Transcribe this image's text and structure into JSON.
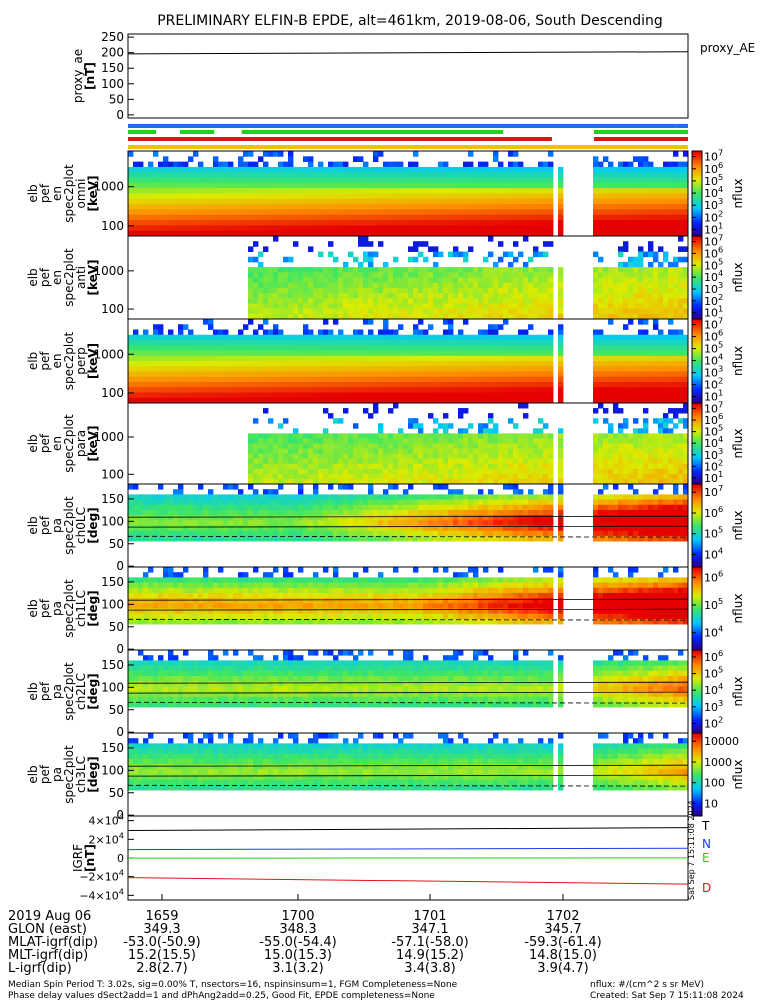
{
  "title": "PRELIMINARY ELFIN-B EPDE, alt=461km, 2019-08-06, South Descending",
  "colors": {
    "blue": "#1a6ee6",
    "green": "#1ed21e",
    "red": "#e01414",
    "yellow": "#f5c000"
  },
  "chart_data": [
    {
      "type": "line",
      "name": "proxy_ae",
      "ylabel_lines": [
        "proxy_ae",
        "[nT]"
      ],
      "yticks": [
        "250",
        "200",
        "150",
        "100",
        "50",
        "0"
      ],
      "ylim": [
        -10,
        260
      ],
      "series": [
        {
          "name": "proxy_AE",
          "x": [
            0,
            1
          ],
          "values": [
            196,
            203
          ]
        }
      ]
    },
    {
      "type": "bar",
      "name": "indicator-bars",
      "bars": [
        {
          "color": "blue",
          "segments": [
            [
              0,
              0.98
            ],
            [
              0.98,
              1.0
            ]
          ]
        },
        {
          "color": "green",
          "segments": [
            [
              0.0,
              0.05
            ],
            [
              0.093,
              0.154
            ],
            [
              0.203,
              0.67
            ],
            [
              0.832,
              1.0
            ]
          ]
        },
        {
          "color": "red",
          "segments": [
            [
              0.0,
              0.757
            ],
            [
              0.832,
              1.0
            ]
          ]
        },
        {
          "color": "yellow",
          "segments": [
            [
              0,
              1
            ]
          ]
        }
      ]
    },
    {
      "type": "heatmap",
      "name": "omni",
      "ylabel_lines": [
        "elb",
        "pef",
        "en",
        "spec2plot",
        "omni",
        "[keV]"
      ],
      "yticks": [
        "1000",
        "100"
      ],
      "cbar_ticks": [
        "10^7",
        "10^6",
        "10^5",
        "10^4",
        "10^3",
        "10^2",
        "10^1"
      ],
      "cbar_label": "nflux"
    },
    {
      "type": "heatmap",
      "name": "anti",
      "ylabel_lines": [
        "elb",
        "pef",
        "en",
        "spec2plot",
        "anti",
        "[keV]"
      ],
      "yticks": [
        "1000",
        "100"
      ],
      "cbar_ticks": [
        "10^7",
        "10^6",
        "10^5",
        "10^4",
        "10^3",
        "10^2",
        "10^1"
      ],
      "cbar_label": "nflux"
    },
    {
      "type": "heatmap",
      "name": "perp",
      "ylabel_lines": [
        "elb",
        "pef",
        "en",
        "spec2plot",
        "perp",
        "[keV]"
      ],
      "yticks": [
        "1000",
        "100"
      ],
      "cbar_ticks": [
        "10^7",
        "10^6",
        "10^5",
        "10^4",
        "10^3",
        "10^2",
        "10^1"
      ],
      "cbar_label": "nflux"
    },
    {
      "type": "heatmap",
      "name": "para",
      "ylabel_lines": [
        "elb",
        "pef",
        "en",
        "spec2plot",
        "para",
        "[keV]"
      ],
      "yticks": [
        "1000",
        "100"
      ],
      "cbar_ticks": [
        "10^7",
        "10^6",
        "10^5",
        "10^4",
        "10^3",
        "10^2",
        "10^1"
      ],
      "cbar_label": "nflux"
    },
    {
      "type": "heatmap",
      "name": "ch0LC",
      "ylabel_lines": [
        "elb",
        "pef",
        "pa",
        "spec2plot",
        "ch0LC",
        "[deg]"
      ],
      "yticks": [
        "150",
        "100",
        "50",
        "0"
      ],
      "cbar_ticks": [
        "10^7",
        "10^6",
        "10^5",
        "10^4"
      ],
      "cbar_label": "nflux"
    },
    {
      "type": "heatmap",
      "name": "ch1LC",
      "ylabel_lines": [
        "elb",
        "pef",
        "pa",
        "spec2plot",
        "ch1LC",
        "[deg]"
      ],
      "yticks": [
        "150",
        "100",
        "50",
        "0"
      ],
      "cbar_ticks": [
        "10^6",
        "10^5",
        "10^4"
      ],
      "cbar_label": "nflux"
    },
    {
      "type": "heatmap",
      "name": "ch2LC",
      "ylabel_lines": [
        "elb",
        "pef",
        "pa",
        "spec2plot",
        "ch2LC",
        "[deg]"
      ],
      "yticks": [
        "150",
        "100",
        "50",
        "0"
      ],
      "cbar_ticks": [
        "10^6",
        "10^5",
        "10^4",
        "10^3",
        "10^2"
      ],
      "cbar_label": "nflux"
    },
    {
      "type": "heatmap",
      "name": "ch3LC",
      "ylabel_lines": [
        "elb",
        "pef",
        "pa",
        "spec2plot",
        "ch3LC",
        "[deg]"
      ],
      "yticks": [
        "150",
        "100",
        "50",
        "0"
      ],
      "cbar_ticks": [
        "10000",
        "1000",
        "100",
        "10"
      ],
      "cbar_label": "nflux"
    },
    {
      "type": "line",
      "name": "igrf",
      "ylabel_lines": [
        "IGRF",
        "[nT]"
      ],
      "yticks": [
        "4×10^4",
        "2×10^4",
        "0",
        "−2×10^4",
        "−4×10^4"
      ],
      "ylim": [
        -45000,
        45000
      ],
      "series": [
        {
          "name": "T",
          "color": "#000000",
          "x": [
            0,
            1
          ],
          "values": [
            29500,
            32500
          ]
        },
        {
          "name": "N",
          "color": "#1a3ee6",
          "x": [
            0,
            1
          ],
          "values": [
            9000,
            10500
          ]
        },
        {
          "name": "E",
          "color": "#1ed21e",
          "x": [
            0,
            1
          ],
          "values": [
            -200,
            100
          ]
        },
        {
          "name": "D",
          "color": "#e01414",
          "x": [
            0,
            1
          ],
          "values": [
            -21000,
            -28000
          ]
        }
      ]
    }
  ],
  "axis_labels": {
    "rows": [
      {
        "label": "2019 Aug 06",
        "values": [
          "1659",
          "1700",
          "1701",
          "1702"
        ]
      },
      {
        "label": "GLON (east)",
        "values": [
          "349.3",
          "348.3",
          "347.1",
          "345.7"
        ]
      },
      {
        "label": "MLAT-igrf(dip)",
        "values": [
          "-53.0(-50.9)",
          "-55.0(-54.4)",
          "-57.1(-58.0)",
          "-59.3(-61.4)"
        ]
      },
      {
        "label": "MLT-igrf(dip)",
        "values": [
          "15.2(15.5)",
          "15.0(15.3)",
          "14.9(15.2)",
          "14.8(15.0)"
        ]
      },
      {
        "label": "L-igrf(dip)",
        "values": [
          "2.8(2.7)",
          "3.1(3.2)",
          "3.4(3.8)",
          "3.9(4.7)"
        ]
      }
    ]
  },
  "footer": {
    "line1": "Median Spin Period T: 3.02s, sig=0.00% T, nsectors=16, nspinsinsum=1, FGM Completeness=None",
    "line2": "Phase delay values dSect2add=1 and dPhAng2add=0.25, Good Fit, EPDE completeness=None",
    "right1": "nflux: #/(cm^2 s sr MeV)",
    "right2": "Created: Sat Sep  7 15:11:08 2024",
    "vertical": "Sat Sep  7 15:11:08 2024"
  }
}
